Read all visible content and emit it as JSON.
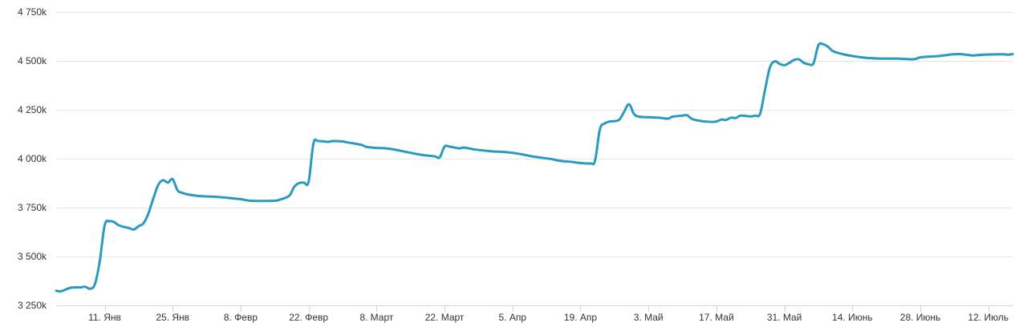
{
  "chart_data": {
    "type": "line",
    "title": "",
    "xlabel": "",
    "ylabel": "",
    "ylim": [
      3250,
      4750
    ],
    "yticks": [
      3250,
      3500,
      3750,
      4000,
      4250,
      4500,
      4750
    ],
    "y_tick_labels": [
      "3 250k",
      "3 500k",
      "3 750k",
      "4 000k",
      "4 250k",
      "4 500k",
      "4 750k"
    ],
    "xlim": [
      "2021-01-01",
      "2021-07-17"
    ],
    "x_ticks": [
      {
        "date": "2021-01-11",
        "label": "11. Янв"
      },
      {
        "date": "2021-01-25",
        "label": "25. Янв"
      },
      {
        "date": "2021-02-08",
        "label": "8. Февр"
      },
      {
        "date": "2021-02-22",
        "label": "22. Февр"
      },
      {
        "date": "2021-03-08",
        "label": "8. Март"
      },
      {
        "date": "2021-03-22",
        "label": "22. Март"
      },
      {
        "date": "2021-04-05",
        "label": "5. Апр"
      },
      {
        "date": "2021-04-19",
        "label": "19. Апр"
      },
      {
        "date": "2021-05-03",
        "label": "3. Май"
      },
      {
        "date": "2021-05-17",
        "label": "17. Май"
      },
      {
        "date": "2021-05-31",
        "label": "31. Май"
      },
      {
        "date": "2021-06-14",
        "label": "14. Июнь"
      },
      {
        "date": "2021-06-28",
        "label": "28. Июнь"
      },
      {
        "date": "2021-07-12",
        "label": "12. Июль"
      }
    ],
    "grid": true,
    "legend": "none",
    "series": [
      {
        "color": "#2b9ac1",
        "points": [
          [
            "2021-01-01",
            3325
          ],
          [
            "2021-01-02",
            3322
          ],
          [
            "2021-01-04",
            3340
          ],
          [
            "2021-01-06",
            3342
          ],
          [
            "2021-01-07",
            3345
          ],
          [
            "2021-01-08",
            3335
          ],
          [
            "2021-01-09",
            3360
          ],
          [
            "2021-01-10",
            3480
          ],
          [
            "2021-01-11",
            3660
          ],
          [
            "2021-01-12",
            3680
          ],
          [
            "2021-01-13",
            3675
          ],
          [
            "2021-01-14",
            3658
          ],
          [
            "2021-01-16",
            3645
          ],
          [
            "2021-01-17",
            3638
          ],
          [
            "2021-01-18",
            3655
          ],
          [
            "2021-01-19",
            3670
          ],
          [
            "2021-01-20",
            3720
          ],
          [
            "2021-01-21",
            3795
          ],
          [
            "2021-01-22",
            3865
          ],
          [
            "2021-01-23",
            3890
          ],
          [
            "2021-01-24",
            3878
          ],
          [
            "2021-01-25",
            3895
          ],
          [
            "2021-01-26",
            3838
          ],
          [
            "2021-01-27",
            3825
          ],
          [
            "2021-01-28",
            3818
          ],
          [
            "2021-01-30",
            3810
          ],
          [
            "2021-01-31",
            3808
          ],
          [
            "2021-02-02",
            3806
          ],
          [
            "2021-02-04",
            3803
          ],
          [
            "2021-02-06",
            3798
          ],
          [
            "2021-02-08",
            3793
          ],
          [
            "2021-02-10",
            3785
          ],
          [
            "2021-02-12",
            3784
          ],
          [
            "2021-02-15",
            3785
          ],
          [
            "2021-02-16",
            3790
          ],
          [
            "2021-02-18",
            3810
          ],
          [
            "2021-02-19",
            3855
          ],
          [
            "2021-02-20",
            3875
          ],
          [
            "2021-02-21",
            3878
          ],
          [
            "2021-02-22",
            3882
          ],
          [
            "2021-02-23",
            4078
          ],
          [
            "2021-02-24",
            4090
          ],
          [
            "2021-02-26",
            4086
          ],
          [
            "2021-02-27",
            4090
          ],
          [
            "2021-03-01",
            4088
          ],
          [
            "2021-03-02",
            4083
          ],
          [
            "2021-03-04",
            4075
          ],
          [
            "2021-03-05",
            4070
          ],
          [
            "2021-03-06",
            4060
          ],
          [
            "2021-03-08",
            4055
          ],
          [
            "2021-03-10",
            4053
          ],
          [
            "2021-03-12",
            4045
          ],
          [
            "2021-03-14",
            4035
          ],
          [
            "2021-03-16",
            4025
          ],
          [
            "2021-03-18",
            4017
          ],
          [
            "2021-03-20",
            4012
          ],
          [
            "2021-03-21",
            4007
          ],
          [
            "2021-03-22",
            4062
          ],
          [
            "2021-03-23",
            4062
          ],
          [
            "2021-03-25",
            4053
          ],
          [
            "2021-03-26",
            4057
          ],
          [
            "2021-03-28",
            4048
          ],
          [
            "2021-03-30",
            4042
          ],
          [
            "2021-04-01",
            4037
          ],
          [
            "2021-04-03",
            4035
          ],
          [
            "2021-04-05",
            4030
          ],
          [
            "2021-04-07",
            4022
          ],
          [
            "2021-04-09",
            4012
          ],
          [
            "2021-04-11",
            4005
          ],
          [
            "2021-04-13",
            3998
          ],
          [
            "2021-04-15",
            3988
          ],
          [
            "2021-04-17",
            3984
          ],
          [
            "2021-04-19",
            3978
          ],
          [
            "2021-04-21",
            3976
          ],
          [
            "2021-04-22",
            3990
          ],
          [
            "2021-04-23",
            4150
          ],
          [
            "2021-04-24",
            4180
          ],
          [
            "2021-04-25",
            4190
          ],
          [
            "2021-04-26",
            4192
          ],
          [
            "2021-04-27",
            4200
          ],
          [
            "2021-04-28",
            4240
          ],
          [
            "2021-04-29",
            4278
          ],
          [
            "2021-04-30",
            4230
          ],
          [
            "2021-05-01",
            4215
          ],
          [
            "2021-05-03",
            4212
          ],
          [
            "2021-05-05",
            4210
          ],
          [
            "2021-05-07",
            4205
          ],
          [
            "2021-05-08",
            4215
          ],
          [
            "2021-05-10",
            4220
          ],
          [
            "2021-05-11",
            4222
          ],
          [
            "2021-05-12",
            4203
          ],
          [
            "2021-05-14",
            4192
          ],
          [
            "2021-05-16",
            4188
          ],
          [
            "2021-05-17",
            4190
          ],
          [
            "2021-05-18",
            4200
          ],
          [
            "2021-05-19",
            4198
          ],
          [
            "2021-05-20",
            4210
          ],
          [
            "2021-05-21",
            4208
          ],
          [
            "2021-05-22",
            4220
          ],
          [
            "2021-05-24",
            4216
          ],
          [
            "2021-05-25",
            4220
          ],
          [
            "2021-05-26",
            4230
          ],
          [
            "2021-05-27",
            4350
          ],
          [
            "2021-05-28",
            4465
          ],
          [
            "2021-05-29",
            4498
          ],
          [
            "2021-05-30",
            4485
          ],
          [
            "2021-05-31",
            4478
          ],
          [
            "2021-06-01",
            4490
          ],
          [
            "2021-06-02",
            4505
          ],
          [
            "2021-06-03",
            4508
          ],
          [
            "2021-06-04",
            4490
          ],
          [
            "2021-06-05",
            4483
          ],
          [
            "2021-06-06",
            4488
          ],
          [
            "2021-06-07",
            4580
          ],
          [
            "2021-06-08",
            4585
          ],
          [
            "2021-06-09",
            4572
          ],
          [
            "2021-06-10",
            4550
          ],
          [
            "2021-06-12",
            4535
          ],
          [
            "2021-06-14",
            4525
          ],
          [
            "2021-06-17",
            4515
          ],
          [
            "2021-06-20",
            4512
          ],
          [
            "2021-06-23",
            4512
          ],
          [
            "2021-06-25",
            4510
          ],
          [
            "2021-06-26",
            4508
          ],
          [
            "2021-06-27",
            4510
          ],
          [
            "2021-06-28",
            4518
          ],
          [
            "2021-06-30",
            4522
          ],
          [
            "2021-07-02",
            4525
          ],
          [
            "2021-07-04",
            4532
          ],
          [
            "2021-07-06",
            4535
          ],
          [
            "2021-07-08",
            4530
          ],
          [
            "2021-07-09",
            4528
          ],
          [
            "2021-07-11",
            4532
          ],
          [
            "2021-07-13",
            4533
          ],
          [
            "2021-07-15",
            4534
          ],
          [
            "2021-07-16",
            4532
          ],
          [
            "2021-07-17",
            4535
          ]
        ]
      }
    ]
  }
}
